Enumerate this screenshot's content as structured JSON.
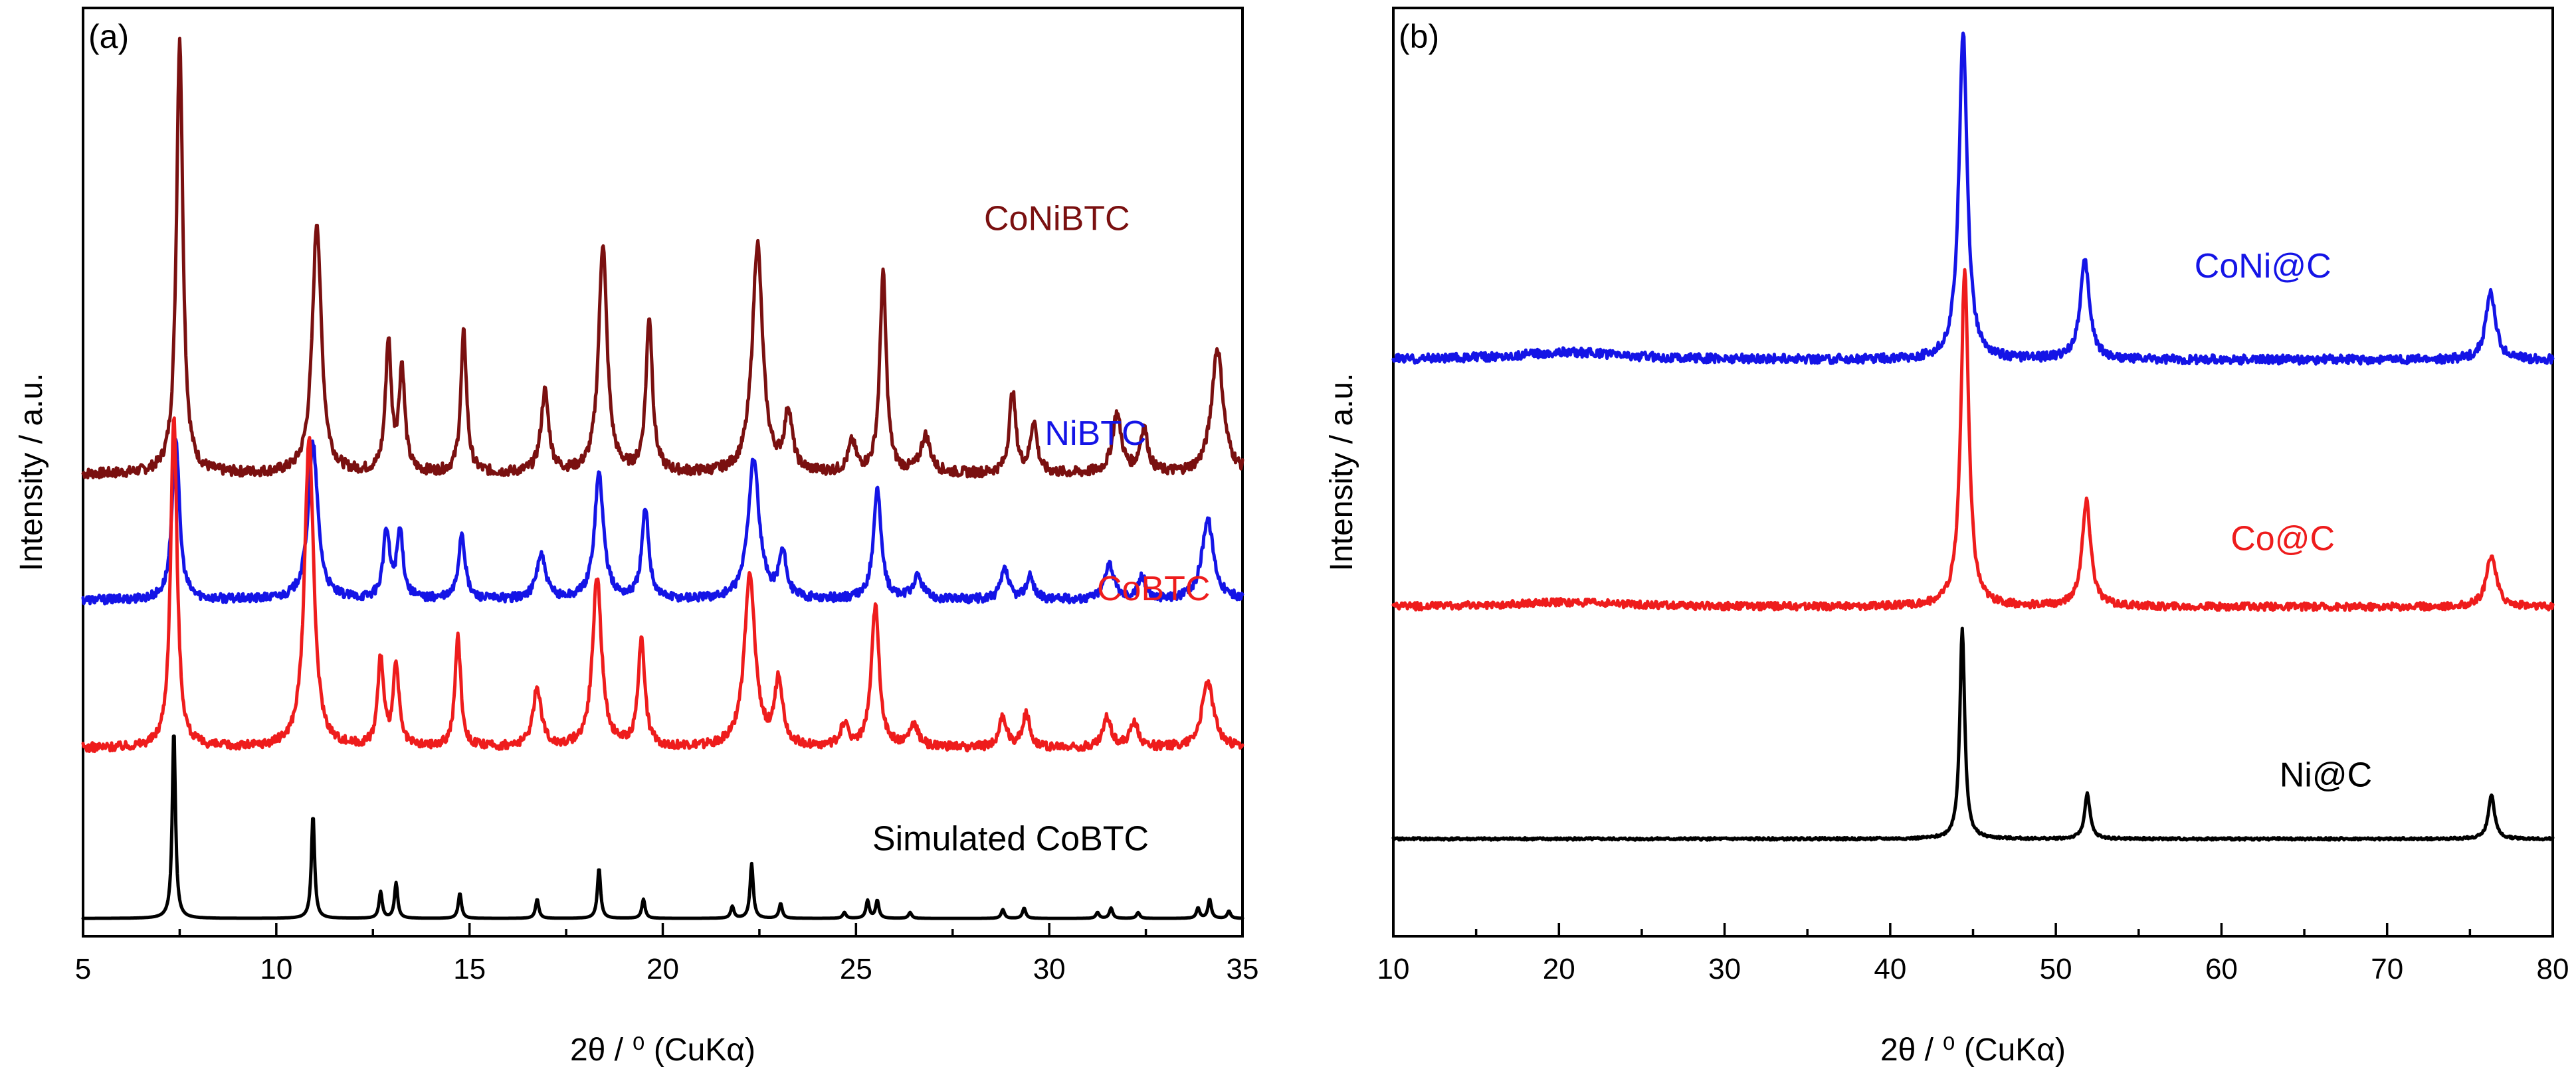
{
  "chart_data": [
    {
      "type": "line",
      "panel": "(a)",
      "title": "",
      "xlabel": "2θ / ⁰ (CuKα)",
      "ylabel": "Intensity / a.u.",
      "xlim": [
        5,
        35
      ],
      "xticks": [
        5,
        10,
        15,
        20,
        25,
        30,
        35
      ],
      "yticks": [],
      "grid": false,
      "legend": "inline labels beside each trace",
      "series": [
        {
          "name": "CoNiBTC",
          "color": "#7a1010",
          "offset": 3.0,
          "noise": 0.035,
          "label": {
            "x": 30.2,
            "y": 4.65
          },
          "peaks": [
            [
              7.5,
              2.95,
              0.1
            ],
            [
              11.05,
              1.7,
              0.14
            ],
            [
              12.9,
              0.88,
              0.09
            ],
            [
              13.25,
              0.7,
              0.09
            ],
            [
              14.85,
              0.95,
              0.09
            ],
            [
              16.95,
              0.55,
              0.12
            ],
            [
              18.45,
              1.55,
              0.13
            ],
            [
              19.65,
              1.05,
              0.1
            ],
            [
              22.45,
              1.55,
              0.16
            ],
            [
              23.25,
              0.4,
              0.12
            ],
            [
              24.9,
              0.2,
              0.12
            ],
            [
              25.7,
              1.35,
              0.1
            ],
            [
              26.8,
              0.25,
              0.15
            ],
            [
              29.05,
              0.55,
              0.1
            ],
            [
              29.6,
              0.35,
              0.1
            ],
            [
              31.75,
              0.4,
              0.14
            ],
            [
              32.45,
              0.3,
              0.12
            ],
            [
              34.35,
              0.85,
              0.18
            ]
          ]
        },
        {
          "name": "NiBTC",
          "color": "#1414e6",
          "offset": 2.15,
          "noise": 0.03,
          "label": {
            "x": 31.2,
            "y": 3.2
          },
          "peaks": [
            [
              7.4,
              1.1,
              0.11
            ],
            [
              10.95,
              1.05,
              0.15
            ],
            [
              12.85,
              0.45,
              0.1
            ],
            [
              13.2,
              0.45,
              0.1
            ],
            [
              14.8,
              0.45,
              0.1
            ],
            [
              16.85,
              0.3,
              0.14
            ],
            [
              18.35,
              0.85,
              0.14
            ],
            [
              19.55,
              0.6,
              0.11
            ],
            [
              22.35,
              0.95,
              0.17
            ],
            [
              23.1,
              0.3,
              0.12
            ],
            [
              25.55,
              0.75,
              0.12
            ],
            [
              26.6,
              0.15,
              0.15
            ],
            [
              28.85,
              0.2,
              0.12
            ],
            [
              29.5,
              0.15,
              0.12
            ],
            [
              31.55,
              0.25,
              0.14
            ],
            [
              32.4,
              0.15,
              0.12
            ],
            [
              34.1,
              0.55,
              0.18
            ]
          ]
        },
        {
          "name": "CoBTC",
          "color": "#ee1c1c",
          "offset": 1.15,
          "noise": 0.03,
          "label": {
            "x": 32.7,
            "y": 2.15
          },
          "peaks": [
            [
              7.35,
              2.25,
              0.1
            ],
            [
              10.85,
              2.1,
              0.14
            ],
            [
              12.7,
              0.6,
              0.09
            ],
            [
              13.1,
              0.55,
              0.09
            ],
            [
              14.7,
              0.75,
              0.09
            ],
            [
              16.75,
              0.4,
              0.13
            ],
            [
              18.3,
              1.15,
              0.14
            ],
            [
              19.45,
              0.75,
              0.1
            ],
            [
              22.25,
              1.15,
              0.17
            ],
            [
              23.0,
              0.45,
              0.12
            ],
            [
              24.7,
              0.15,
              0.12
            ],
            [
              25.5,
              0.95,
              0.12
            ],
            [
              26.5,
              0.15,
              0.14
            ],
            [
              28.8,
              0.2,
              0.12
            ],
            [
              29.4,
              0.22,
              0.12
            ],
            [
              31.5,
              0.2,
              0.13
            ],
            [
              32.2,
              0.18,
              0.12
            ],
            [
              34.1,
              0.45,
              0.18
            ]
          ]
        },
        {
          "name": "Simulated CoBTC",
          "color": "#000000",
          "offset": 0.0,
          "noise": 0.0,
          "label": {
            "x": 29.0,
            "y": 0.46
          },
          "peaks": [
            [
              7.35,
              1.28,
              0.05
            ],
            [
              10.95,
              0.7,
              0.05
            ],
            [
              12.7,
              0.18,
              0.05
            ],
            [
              13.1,
              0.24,
              0.05
            ],
            [
              14.75,
              0.17,
              0.05
            ],
            [
              16.75,
              0.13,
              0.05
            ],
            [
              18.35,
              0.34,
              0.05
            ],
            [
              19.5,
              0.13,
              0.05
            ],
            [
              21.8,
              0.08,
              0.05
            ],
            [
              22.3,
              0.37,
              0.05
            ],
            [
              23.05,
              0.1,
              0.05
            ],
            [
              24.7,
              0.04,
              0.05
            ],
            [
              25.3,
              0.12,
              0.05
            ],
            [
              25.55,
              0.12,
              0.05
            ],
            [
              26.4,
              0.04,
              0.05
            ],
            [
              28.8,
              0.06,
              0.05
            ],
            [
              29.35,
              0.07,
              0.05
            ],
            [
              31.25,
              0.04,
              0.05
            ],
            [
              31.6,
              0.07,
              0.05
            ],
            [
              32.3,
              0.04,
              0.05
            ],
            [
              33.85,
              0.07,
              0.05
            ],
            [
              34.15,
              0.13,
              0.05
            ],
            [
              34.65,
              0.05,
              0.05
            ]
          ]
        }
      ]
    },
    {
      "type": "line",
      "panel": "(b)",
      "title": "",
      "xlabel": "2θ / ⁰ (CuKα)",
      "ylabel": "Intensity / a.u.",
      "xlim": [
        10,
        80
      ],
      "xticks": [
        10,
        20,
        30,
        40,
        50,
        60,
        70,
        80
      ],
      "yticks": [],
      "grid": false,
      "legend": "inline labels beside each trace",
      "series": [
        {
          "name": "CoNi@C",
          "color": "#1414e6",
          "offset": 3.2,
          "noise": 0.03,
          "label": {
            "x": 62.5,
            "y": 3.75
          },
          "peaks": [
            [
              20.5,
              0.05,
              4.0
            ],
            [
              44.4,
              2.2,
              0.3
            ],
            [
              51.75,
              0.65,
              0.35
            ],
            [
              76.25,
              0.45,
              0.35
            ]
          ]
        },
        {
          "name": "Co@C",
          "color": "#ee1c1c",
          "offset": 1.55,
          "noise": 0.025,
          "label": {
            "x": 63.7,
            "y": 1.93
          },
          "peaks": [
            [
              20.5,
              0.03,
              4.0
            ],
            [
              44.5,
              2.25,
              0.28
            ],
            [
              51.85,
              0.7,
              0.32
            ],
            [
              76.3,
              0.35,
              0.35
            ]
          ]
        },
        {
          "name": "Ni@C",
          "color": "#000000",
          "offset": 0.0,
          "noise": 0.008,
          "label": {
            "x": 66.3,
            "y": 0.35
          },
          "peaks": [
            [
              44.35,
              1.4,
              0.18
            ],
            [
              51.9,
              0.3,
              0.2
            ],
            [
              76.3,
              0.3,
              0.22
            ]
          ]
        }
      ]
    }
  ]
}
